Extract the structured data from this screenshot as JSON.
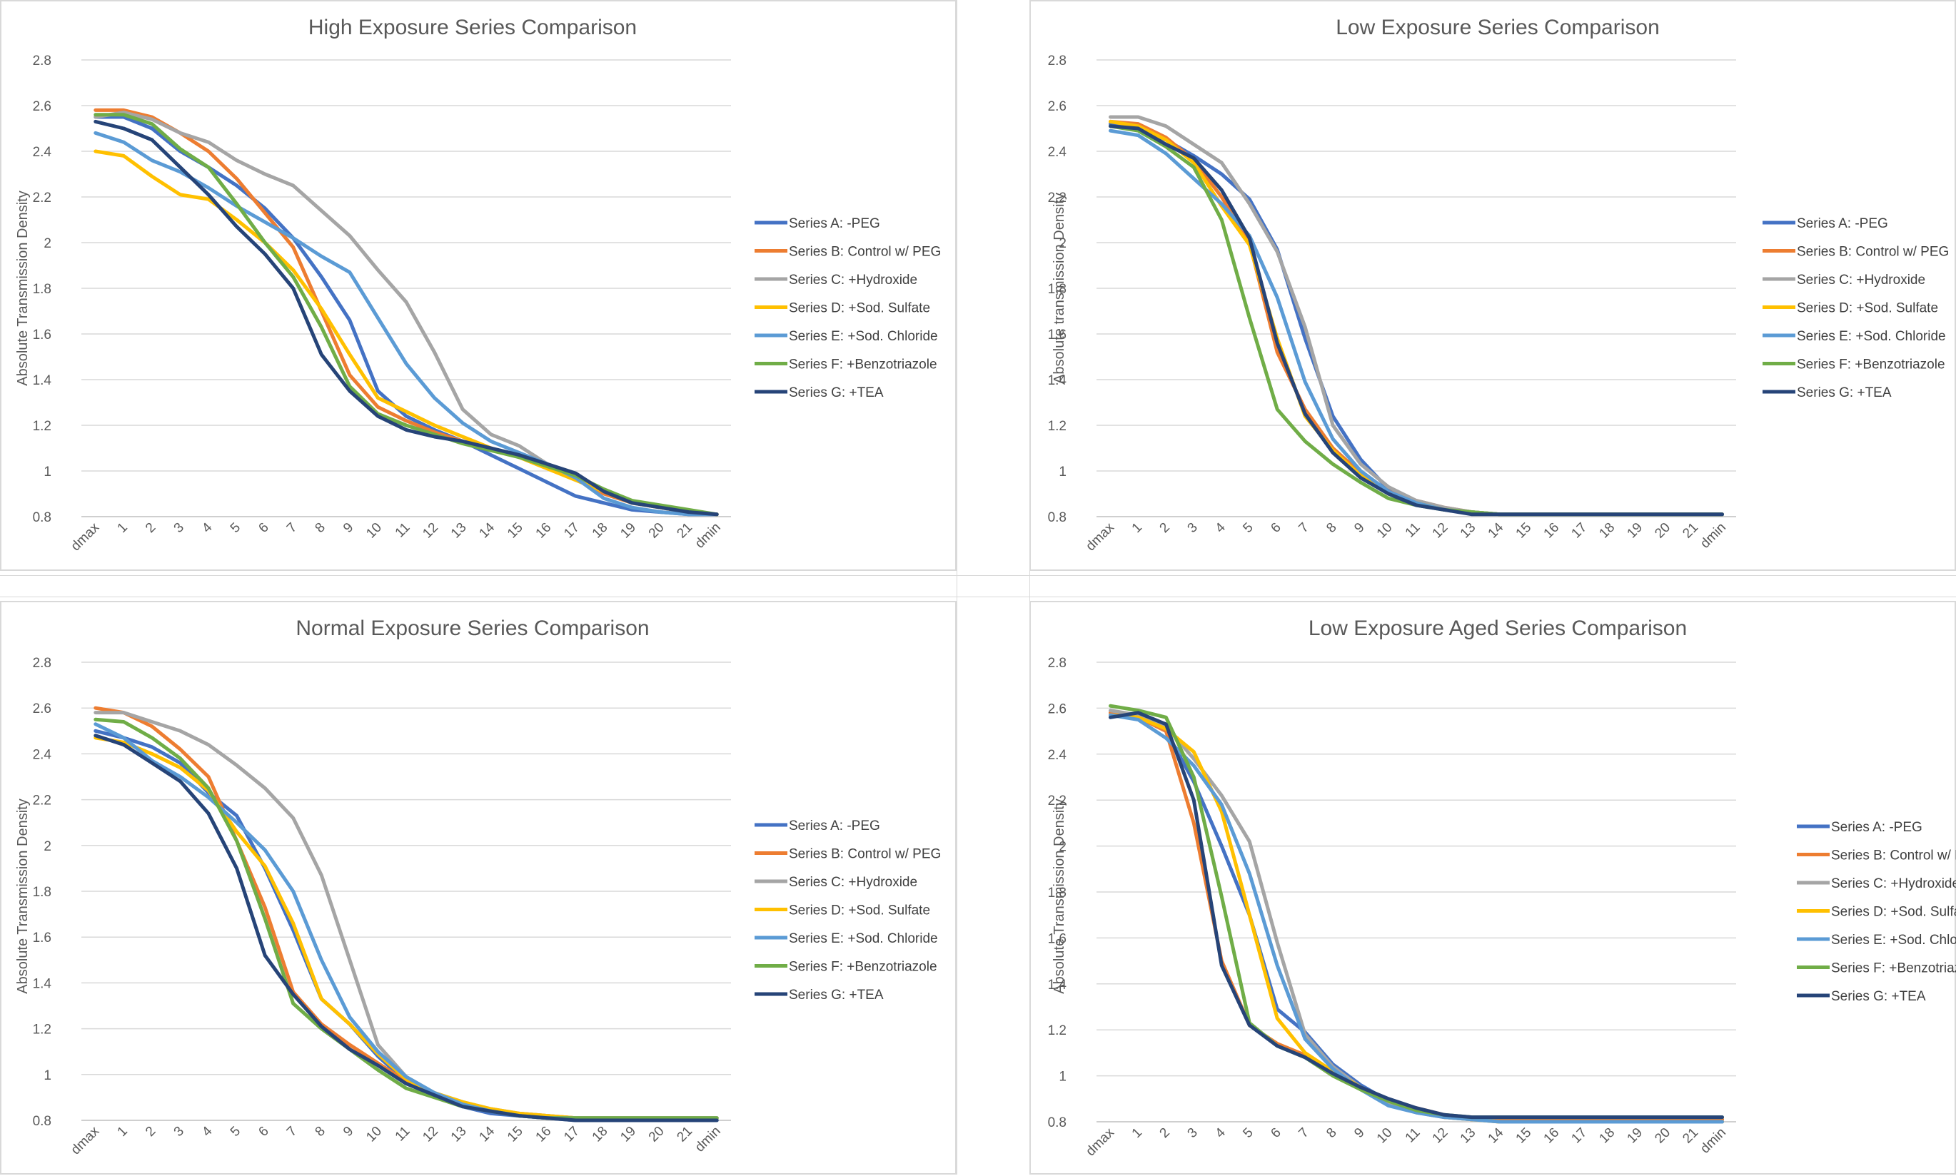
{
  "series_meta": [
    {
      "name": "Series A: -PEG",
      "color": "#4472c4"
    },
    {
      "name": "Series B: Control w/ PEG",
      "color": "#ed7d31"
    },
    {
      "name": "Series C: +Hydroxide",
      "color": "#a5a5a5"
    },
    {
      "name": "Series D: +Sod. Sulfate",
      "color": "#ffc000"
    },
    {
      "name": "Series E: +Sod. Chloride",
      "color": "#5b9bd5"
    },
    {
      "name": "Series F: +Benzotriazole",
      "color": "#70ad47"
    },
    {
      "name": "Series G: +TEA",
      "color": "#264478"
    }
  ],
  "chart_data": [
    {
      "type": "line",
      "title": "High Exposure Series Comparison",
      "xlabel": "",
      "ylabel": "Absolute Transmission Density",
      "ylim": [
        0.8,
        2.8
      ],
      "yticks": [
        "0.8",
        "1",
        "1.2",
        "1.4",
        "1.6",
        "1.8",
        "2",
        "2.2",
        "2.4",
        "2.6",
        "2.8"
      ],
      "grid": true,
      "legend": "right",
      "categories": [
        "dmax",
        "1",
        "2",
        "3",
        "4",
        "5",
        "6",
        "7",
        "8",
        "9",
        "10",
        "11",
        "12",
        "13",
        "14",
        "15",
        "16",
        "17",
        "18",
        "19",
        "20",
        "21",
        "dmin"
      ],
      "series": [
        {
          "name": "Series A: -PEG",
          "values": [
            2.55,
            2.55,
            2.5,
            2.4,
            2.33,
            2.25,
            2.15,
            2.02,
            1.85,
            1.66,
            1.35,
            1.24,
            1.18,
            1.13,
            1.07,
            1.01,
            0.95,
            0.89,
            0.86,
            0.83,
            0.82,
            0.81,
            0.81
          ]
        },
        {
          "name": "Series B: Control w/ PEG",
          "values": [
            2.58,
            2.58,
            2.55,
            2.48,
            2.4,
            2.28,
            2.13,
            1.98,
            1.7,
            1.42,
            1.28,
            1.22,
            1.17,
            1.13,
            1.1,
            1.06,
            1.02,
            0.98,
            0.9,
            0.86,
            0.84,
            0.82,
            0.81
          ]
        },
        {
          "name": "Series C: +Hydroxide",
          "values": [
            2.55,
            2.57,
            2.54,
            2.48,
            2.44,
            2.36,
            2.3,
            2.25,
            2.14,
            2.03,
            1.88,
            1.74,
            1.52,
            1.27,
            1.16,
            1.11,
            1.03,
            0.99,
            0.91,
            0.86,
            0.84,
            0.82,
            0.81
          ]
        },
        {
          "name": "Series D: +Sod. Sulfate",
          "values": [
            2.4,
            2.38,
            2.29,
            2.21,
            2.19,
            2.1,
            2.0,
            1.88,
            1.71,
            1.51,
            1.32,
            1.26,
            1.2,
            1.15,
            1.1,
            1.06,
            1.01,
            0.96,
            0.91,
            0.86,
            0.84,
            0.82,
            0.81
          ]
        },
        {
          "name": "Series E: +Sod. Chloride",
          "values": [
            2.48,
            2.44,
            2.36,
            2.31,
            2.24,
            2.16,
            2.09,
            2.02,
            1.94,
            1.87,
            1.67,
            1.47,
            1.32,
            1.21,
            1.13,
            1.08,
            1.03,
            0.97,
            0.88,
            0.84,
            0.82,
            0.81,
            0.81
          ]
        },
        {
          "name": "Series F: +Benzotriazole",
          "values": [
            2.56,
            2.56,
            2.52,
            2.41,
            2.33,
            2.17,
            2.0,
            1.85,
            1.63,
            1.37,
            1.25,
            1.2,
            1.16,
            1.12,
            1.09,
            1.06,
            1.02,
            0.98,
            0.92,
            0.87,
            0.85,
            0.83,
            0.81
          ]
        },
        {
          "name": "Series G: +TEA",
          "values": [
            2.53,
            2.5,
            2.45,
            2.33,
            2.21,
            2.07,
            1.95,
            1.8,
            1.51,
            1.35,
            1.24,
            1.18,
            1.15,
            1.13,
            1.1,
            1.07,
            1.03,
            0.99,
            0.91,
            0.86,
            0.84,
            0.82,
            0.81
          ]
        }
      ]
    },
    {
      "type": "line",
      "title": "Low Exposure Series Comparison",
      "xlabel": "",
      "ylabel": "Absolute transmission Density",
      "ylim": [
        0.8,
        2.8
      ],
      "yticks": [
        "0.8",
        "1",
        "1.2",
        "1.4",
        "1.6",
        "1.8",
        "2",
        "2.2",
        "2.4",
        "2.6",
        "2.8"
      ],
      "grid": true,
      "legend": "right",
      "categories": [
        "dmax",
        "1",
        "2",
        "3",
        "4",
        "5",
        "6",
        "7",
        "8",
        "9",
        "10",
        "11",
        "12",
        "13",
        "14",
        "15",
        "16",
        "17",
        "18",
        "19",
        "20",
        "21",
        "dmin"
      ],
      "series": [
        {
          "name": "Series A: -PEG",
          "values": [
            2.52,
            2.5,
            2.45,
            2.38,
            2.3,
            2.19,
            1.97,
            1.58,
            1.24,
            1.05,
            0.92,
            0.86,
            0.83,
            0.82,
            0.81,
            0.81,
            0.81,
            0.81,
            0.81,
            0.81,
            0.81,
            0.81,
            0.81
          ]
        },
        {
          "name": "Series B: Control w/ PEG",
          "values": [
            2.53,
            2.52,
            2.46,
            2.36,
            2.2,
            2.0,
            1.52,
            1.27,
            1.1,
            0.99,
            0.91,
            0.87,
            0.84,
            0.82,
            0.81,
            0.81,
            0.81,
            0.81,
            0.81,
            0.81,
            0.81,
            0.81,
            0.81
          ]
        },
        {
          "name": "Series C: +Hydroxide",
          "values": [
            2.55,
            2.55,
            2.51,
            2.43,
            2.35,
            2.17,
            1.96,
            1.63,
            1.2,
            1.03,
            0.93,
            0.87,
            0.84,
            0.82,
            0.81,
            0.81,
            0.81,
            0.81,
            0.81,
            0.81,
            0.81,
            0.81,
            0.81
          ]
        },
        {
          "name": "Series D: +Sod. Sulfate",
          "values": [
            2.53,
            2.51,
            2.45,
            2.35,
            2.16,
            1.99,
            1.58,
            1.24,
            1.09,
            0.98,
            0.9,
            0.86,
            0.83,
            0.82,
            0.81,
            0.81,
            0.81,
            0.81,
            0.81,
            0.81,
            0.81,
            0.81,
            0.81
          ]
        },
        {
          "name": "Series E: +Sod. Chloride",
          "values": [
            2.49,
            2.47,
            2.39,
            2.28,
            2.17,
            2.03,
            1.76,
            1.39,
            1.14,
            1.0,
            0.91,
            0.86,
            0.83,
            0.82,
            0.81,
            0.81,
            0.81,
            0.81,
            0.81,
            0.81,
            0.81,
            0.81,
            0.81
          ]
        },
        {
          "name": "Series F: +Benzotriazole",
          "values": [
            2.51,
            2.49,
            2.42,
            2.33,
            2.1,
            1.67,
            1.27,
            1.13,
            1.03,
            0.95,
            0.88,
            0.85,
            0.83,
            0.82,
            0.81,
            0.81,
            0.81,
            0.81,
            0.81,
            0.81,
            0.81,
            0.81,
            0.81
          ]
        },
        {
          "name": "Series G: +TEA",
          "values": [
            2.51,
            2.5,
            2.43,
            2.37,
            2.23,
            2.02,
            1.56,
            1.25,
            1.08,
            0.97,
            0.9,
            0.85,
            0.83,
            0.81,
            0.81,
            0.81,
            0.81,
            0.81,
            0.81,
            0.81,
            0.81,
            0.81,
            0.81
          ]
        }
      ]
    },
    {
      "type": "line",
      "title": "Normal Exposure Series Comparison",
      "xlabel": "",
      "ylabel": "Absolute Transmission Density",
      "ylim": [
        0.8,
        2.8
      ],
      "yticks": [
        "0.8",
        "1",
        "1.2",
        "1.4",
        "1.6",
        "1.8",
        "2",
        "2.2",
        "2.4",
        "2.6",
        "2.8"
      ],
      "grid": true,
      "legend": "right",
      "categories": [
        "dmax",
        "1",
        "2",
        "3",
        "4",
        "5",
        "6",
        "7",
        "8",
        "9",
        "10",
        "11",
        "12",
        "13",
        "14",
        "15",
        "16",
        "17",
        "18",
        "19",
        "20",
        "21",
        "dmin"
      ],
      "series": [
        {
          "name": "Series A: -PEG",
          "values": [
            2.5,
            2.47,
            2.43,
            2.36,
            2.23,
            2.13,
            1.9,
            1.63,
            1.33,
            1.22,
            1.08,
            0.97,
            0.91,
            0.86,
            0.83,
            0.82,
            0.81,
            0.8,
            0.8,
            0.8,
            0.8,
            0.8,
            0.8
          ]
        },
        {
          "name": "Series B: Control w/ PEG",
          "values": [
            2.6,
            2.58,
            2.52,
            2.42,
            2.3,
            2.02,
            1.73,
            1.36,
            1.22,
            1.13,
            1.05,
            0.97,
            0.91,
            0.87,
            0.84,
            0.83,
            0.82,
            0.81,
            0.81,
            0.81,
            0.81,
            0.81,
            0.81
          ]
        },
        {
          "name": "Series C: +Hydroxide",
          "values": [
            2.58,
            2.58,
            2.54,
            2.5,
            2.44,
            2.35,
            2.25,
            2.12,
            1.87,
            1.5,
            1.13,
            0.99,
            0.92,
            0.88,
            0.85,
            0.83,
            0.82,
            0.81,
            0.81,
            0.81,
            0.81,
            0.81,
            0.81
          ]
        },
        {
          "name": "Series D: +Sod. Sulfate",
          "values": [
            2.47,
            2.45,
            2.4,
            2.34,
            2.24,
            2.06,
            1.91,
            1.66,
            1.33,
            1.22,
            1.09,
            0.98,
            0.92,
            0.88,
            0.85,
            0.83,
            0.82,
            0.81,
            0.81,
            0.81,
            0.81,
            0.81,
            0.81
          ]
        },
        {
          "name": "Series E: +Sod. Chloride",
          "values": [
            2.53,
            2.47,
            2.37,
            2.3,
            2.21,
            2.1,
            1.98,
            1.8,
            1.5,
            1.25,
            1.1,
            0.99,
            0.92,
            0.87,
            0.84,
            0.82,
            0.81,
            0.81,
            0.81,
            0.81,
            0.81,
            0.81,
            0.81
          ]
        },
        {
          "name": "Series F: +Benzotriazole",
          "values": [
            2.55,
            2.54,
            2.47,
            2.38,
            2.25,
            2.02,
            1.68,
            1.31,
            1.2,
            1.11,
            1.02,
            0.94,
            0.9,
            0.86,
            0.84,
            0.82,
            0.81,
            0.81,
            0.81,
            0.81,
            0.81,
            0.81,
            0.81
          ]
        },
        {
          "name": "Series G: +TEA",
          "values": [
            2.48,
            2.44,
            2.36,
            2.28,
            2.14,
            1.9,
            1.52,
            1.35,
            1.21,
            1.11,
            1.04,
            0.96,
            0.91,
            0.86,
            0.84,
            0.82,
            0.81,
            0.8,
            0.8,
            0.8,
            0.8,
            0.8,
            0.8
          ]
        }
      ]
    },
    {
      "type": "line",
      "title": "Low Exposure Aged Series Comparison",
      "xlabel": "",
      "ylabel": "Absolute Transmission Density",
      "ylim": [
        0.8,
        2.8
      ],
      "yticks": [
        "0.8",
        "1",
        "1.2",
        "1.4",
        "1.6",
        "1.8",
        "2",
        "2.2",
        "2.4",
        "2.6",
        "2.8"
      ],
      "grid": true,
      "legend": "right",
      "categories": [
        "dmax",
        "1",
        "2",
        "3",
        "4",
        "5",
        "6",
        "7",
        "8",
        "9",
        "10",
        "11",
        "12",
        "13",
        "14",
        "15",
        "16",
        "17",
        "18",
        "19",
        "20",
        "21",
        "dmin"
      ],
      "series": [
        {
          "name": "Series A: -PEG",
          "values": [
            2.58,
            2.57,
            2.5,
            2.28,
            2.0,
            1.7,
            1.29,
            1.19,
            1.05,
            0.96,
            0.89,
            0.85,
            0.82,
            0.81,
            0.81,
            0.81,
            0.81,
            0.81,
            0.81,
            0.81,
            0.81,
            0.81,
            0.81
          ]
        },
        {
          "name": "Series B: Control w/ PEG",
          "values": [
            2.58,
            2.56,
            2.5,
            2.1,
            1.5,
            1.22,
            1.14,
            1.09,
            1.01,
            0.95,
            0.89,
            0.86,
            0.83,
            0.81,
            0.81,
            0.81,
            0.81,
            0.81,
            0.81,
            0.81,
            0.81,
            0.81,
            0.81
          ]
        },
        {
          "name": "Series C: +Hydroxide",
          "values": [
            2.59,
            2.57,
            2.52,
            2.38,
            2.22,
            2.02,
            1.58,
            1.18,
            1.04,
            0.95,
            0.88,
            0.84,
            0.82,
            0.81,
            0.8,
            0.8,
            0.8,
            0.8,
            0.8,
            0.8,
            0.8,
            0.8,
            0.8
          ]
        },
        {
          "name": "Series D: +Sod. Sulfate",
          "values": [
            2.57,
            2.56,
            2.51,
            2.41,
            2.15,
            1.7,
            1.25,
            1.1,
            1.02,
            0.95,
            0.89,
            0.85,
            0.82,
            0.81,
            0.8,
            0.8,
            0.8,
            0.8,
            0.8,
            0.8,
            0.8,
            0.8,
            0.8
          ]
        },
        {
          "name": "Series E: +Sod. Chloride",
          "values": [
            2.57,
            2.55,
            2.47,
            2.35,
            2.18,
            1.88,
            1.48,
            1.16,
            1.03,
            0.94,
            0.87,
            0.84,
            0.82,
            0.81,
            0.8,
            0.8,
            0.8,
            0.8,
            0.8,
            0.8,
            0.8,
            0.8,
            0.8
          ]
        },
        {
          "name": "Series F: +Benzotriazole",
          "values": [
            2.61,
            2.59,
            2.56,
            2.3,
            1.78,
            1.23,
            1.13,
            1.08,
            1.0,
            0.94,
            0.89,
            0.85,
            0.83,
            0.82,
            0.82,
            0.82,
            0.82,
            0.82,
            0.82,
            0.82,
            0.82,
            0.82,
            0.82
          ]
        },
        {
          "name": "Series G: +TEA",
          "values": [
            2.56,
            2.58,
            2.53,
            2.2,
            1.48,
            1.22,
            1.13,
            1.08,
            1.01,
            0.95,
            0.9,
            0.86,
            0.83,
            0.82,
            0.82,
            0.82,
            0.82,
            0.82,
            0.82,
            0.82,
            0.82,
            0.82,
            0.82
          ]
        }
      ]
    }
  ]
}
